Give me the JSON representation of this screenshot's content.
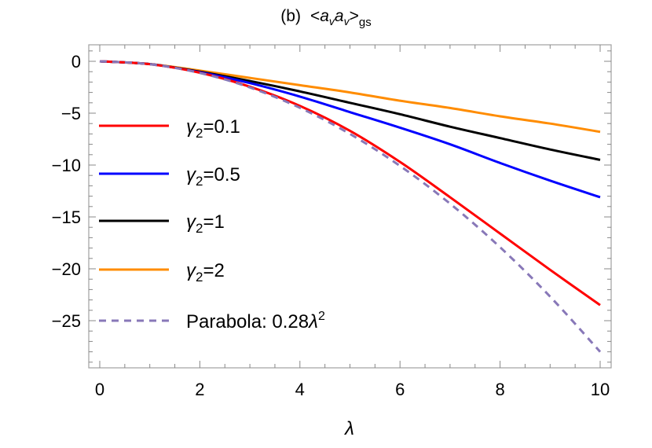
{
  "chart_data": {
    "type": "line",
    "title": {
      "prefix": "(b)",
      "open": "<",
      "a1": "a",
      "v1": "v",
      "a2": "a",
      "v2": "v",
      "close": ">",
      "sub": "gs"
    },
    "xlabel": "λ",
    "ylabel": "",
    "xlim": [
      0,
      10
    ],
    "ylim": [
      -29.6,
      1.6
    ],
    "xticks": [
      0,
      2,
      4,
      6,
      8,
      10
    ],
    "yticks": [
      0,
      -5,
      -10,
      -15,
      -20,
      -25
    ],
    "grid": false,
    "legend_position": "left",
    "x": [
      0,
      1,
      2,
      3,
      4,
      5,
      6,
      7,
      8,
      9,
      10
    ],
    "series": [
      {
        "name": "γ2=0.1",
        "label": {
          "sym": "γ",
          "sub": "2",
          "rest": "=0.1"
        },
        "color": "#ff0000",
        "dash": false,
        "values": [
          0,
          -0.28,
          -1.1,
          -2.45,
          -4.3,
          -6.7,
          -9.7,
          -13.1,
          -16.6,
          -20.1,
          -23.5
        ]
      },
      {
        "name": "γ2=0.5",
        "label": {
          "sym": "γ",
          "sub": "2",
          "rest": "=0.5"
        },
        "color": "#0000ff",
        "dash": false,
        "values": [
          0,
          -0.27,
          -1.05,
          -2.1,
          -3.4,
          -4.9,
          -6.4,
          -8.0,
          -9.8,
          -11.5,
          -13.1
        ]
      },
      {
        "name": "γ2=1",
        "label": {
          "sym": "γ",
          "sub": "2",
          "rest": "=1"
        },
        "color": "#000000",
        "dash": false,
        "values": [
          0,
          -0.27,
          -1.0,
          -1.9,
          -2.9,
          -4.0,
          -5.1,
          -6.3,
          -7.4,
          -8.5,
          -9.5
        ]
      },
      {
        "name": "γ2=2",
        "label": {
          "sym": "γ",
          "sub": "2",
          "rest": "=2"
        },
        "color": "#ff8c00",
        "dash": false,
        "values": [
          0,
          -0.26,
          -0.9,
          -1.6,
          -2.3,
          -3.0,
          -3.8,
          -4.5,
          -5.3,
          -6.0,
          -6.8
        ]
      },
      {
        "name": "Parabola: 0.28λ2",
        "label": {
          "sym": "Parabola: 0.28",
          "var": "λ",
          "sup": "2"
        },
        "color": "#8878b8",
        "dash": true,
        "values": [
          0,
          -0.28,
          -1.12,
          -2.52,
          -4.48,
          -7.0,
          -10.08,
          -13.72,
          -17.92,
          -22.68,
          -28.0
        ]
      }
    ]
  }
}
